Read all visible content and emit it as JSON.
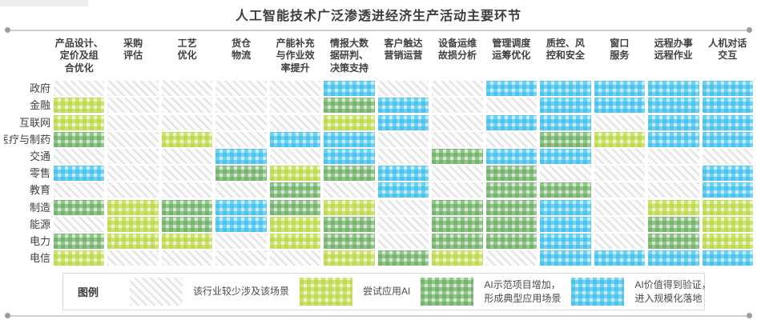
{
  "title": "人工智能技术广泛渗透进经济生产活动主要环节",
  "header": {
    "columns_wrapped": [
      "产品设计、\n定价及组\n合优化",
      "采购\n评估",
      "工艺\n优化",
      "货仓\n物流",
      "产能补充\n与作业效\n率提升",
      "情报大数\n据研判、\n决策支持",
      "客户触达\n营销运营",
      "设备运维\n故损分析",
      "管理调度\n运筹优化",
      "质控、风\n控和安全",
      "窗口\n服务",
      "远程办事\n远程作业",
      "人机对话\n交互"
    ]
  },
  "legend": {
    "label": "图例",
    "items": [
      {
        "level": 0,
        "label": "该行业较少涉及该场景"
      },
      {
        "level": 1,
        "label": "尝试应用AI"
      },
      {
        "level": 2,
        "label": "AI示范项目增加，\n形成典型应用场景"
      },
      {
        "level": 3,
        "label": "AI价值得到验证，\n进入规模化落地"
      }
    ]
  },
  "colors": {
    "level0_hatch": "#e2e2e2",
    "level1_lime": "#b5d331",
    "level2_green": "#5ea853",
    "level3_blue": "#2ab9ec",
    "title_text": "#3c3c3c",
    "divider": "#cfcfcf"
  },
  "chart_data": {
    "type": "heatmap",
    "title": "人工智能技术广泛渗透进经济生产活动主要环节",
    "columns": [
      "产品设计、定价及组合优化",
      "采购评估",
      "工艺优化",
      "货仓物流",
      "产能补充与作业效率提升",
      "情报大数据研判、决策支持",
      "客户触达营销运营",
      "设备运维故损分析",
      "管理调度运筹优化",
      "质控、风控和安全",
      "窗口服务",
      "远程办事远程作业",
      "人机对话交互"
    ],
    "rows": [
      "政府",
      "金融",
      "互联网",
      "医疗与制药",
      "交通",
      "零售",
      "教育",
      "制造",
      "能源",
      "电力",
      "电信"
    ],
    "level_labels": [
      "该行业较少涉及该场景",
      "尝试应用AI",
      "AI示范项目增加，形成典型应用场景",
      "AI价值得到验证，进入规模化落地"
    ],
    "matrix": [
      [
        0,
        0,
        0,
        0,
        0,
        3,
        0,
        0,
        3,
        3,
        3,
        3,
        3
      ],
      [
        1,
        0,
        0,
        0,
        0,
        2,
        3,
        0,
        0,
        3,
        3,
        3,
        3
      ],
      [
        1,
        0,
        0,
        0,
        0,
        1,
        3,
        0,
        3,
        3,
        0,
        3,
        3
      ],
      [
        2,
        0,
        1,
        0,
        3,
        3,
        0,
        0,
        0,
        2,
        1,
        3,
        3
      ],
      [
        0,
        0,
        0,
        3,
        0,
        3,
        0,
        2,
        3,
        3,
        0,
        0,
        0
      ],
      [
        3,
        0,
        0,
        2,
        1,
        2,
        3,
        0,
        2,
        0,
        0,
        0,
        3
      ],
      [
        0,
        0,
        0,
        0,
        2,
        0,
        3,
        0,
        2,
        2,
        0,
        0,
        3
      ],
      [
        2,
        1,
        2,
        3,
        2,
        1,
        0,
        2,
        2,
        3,
        0,
        1,
        1
      ],
      [
        0,
        1,
        2,
        3,
        1,
        2,
        0,
        2,
        2,
        3,
        0,
        2,
        1
      ],
      [
        2,
        1,
        1,
        0,
        1,
        2,
        0,
        2,
        2,
        3,
        0,
        2,
        1
      ],
      [
        1,
        0,
        0,
        0,
        0,
        1,
        2,
        1,
        0,
        3,
        3,
        3,
        3
      ]
    ]
  }
}
